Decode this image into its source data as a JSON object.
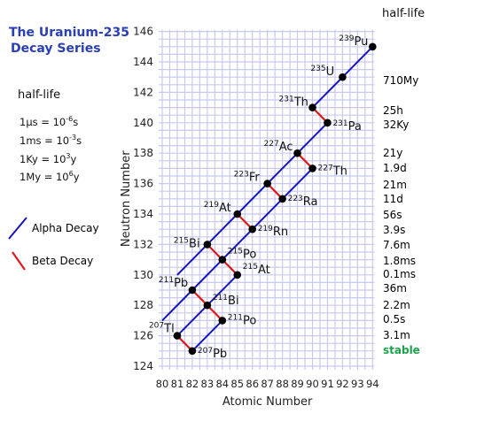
{
  "title": [
    "The Uranium-235",
    "Decay Series"
  ],
  "units_box": {
    "heading": "half-life",
    "lines": [
      {
        "base": "1μs = 10",
        "sup": "-6",
        "tail": "s"
      },
      {
        "base": "1ms = 10",
        "sup": "-3",
        "tail": "s"
      },
      {
        "base": "1Ky = 10",
        "sup": "3",
        "tail": "y"
      },
      {
        "base": "1My = 10",
        "sup": "6",
        "tail": "y"
      }
    ]
  },
  "legend": [
    {
      "label": "Alpha Decay",
      "color": "#2222cc"
    },
    {
      "label": "Beta Decay",
      "color": "#e02020"
    }
  ],
  "half_life_header": "half-life",
  "half_lives": [
    "710My",
    "25h",
    "32Ky",
    "21y",
    "1.9d",
    "21m",
    "11d",
    "56s",
    "3.9s",
    "7.6m",
    "1.8ms",
    "0.1ms",
    "36m",
    "2.2m",
    "0.5s",
    "3.1m",
    "stable"
  ],
  "chart_data": {
    "type": "scatter",
    "xlabel": "Atomic Number",
    "ylabel": "Neutron Number",
    "xlim": [
      80,
      94
    ],
    "ylim": [
      124,
      146
    ],
    "xticks": [
      80,
      81,
      82,
      83,
      84,
      85,
      86,
      87,
      88,
      89,
      90,
      91,
      92,
      93,
      94
    ],
    "yticks": [
      124,
      126,
      128,
      130,
      132,
      134,
      136,
      138,
      140,
      142,
      144,
      146
    ],
    "grid": true,
    "nuclides": [
      {
        "mass": "239",
        "symbol": "Pu",
        "z": 94,
        "n": 145
      },
      {
        "mass": "235",
        "symbol": "U",
        "z": 92,
        "n": 143
      },
      {
        "mass": "231",
        "symbol": "Th",
        "z": 90,
        "n": 141
      },
      {
        "mass": "231",
        "symbol": "Pa",
        "z": 91,
        "n": 140
      },
      {
        "mass": "227",
        "symbol": "Ac",
        "z": 89,
        "n": 138
      },
      {
        "mass": "227",
        "symbol": "Th",
        "z": 90,
        "n": 137
      },
      {
        "mass": "223",
        "symbol": "Fr",
        "z": 87,
        "n": 136
      },
      {
        "mass": "223",
        "symbol": "Ra",
        "z": 88,
        "n": 135
      },
      {
        "mass": "219",
        "symbol": "At",
        "z": 85,
        "n": 134
      },
      {
        "mass": "219",
        "symbol": "Rn",
        "z": 86,
        "n": 133
      },
      {
        "mass": "215",
        "symbol": "Bi",
        "z": 83,
        "n": 132
      },
      {
        "mass": "215",
        "symbol": "Po",
        "z": 84,
        "n": 131
      },
      {
        "mass": "211",
        "symbol": "Pb",
        "z": 82,
        "n": 129
      },
      {
        "mass": "215",
        "symbol": "At",
        "z": 85,
        "n": 130
      },
      {
        "mass": "211",
        "symbol": "Bi",
        "z": 83,
        "n": 128
      },
      {
        "mass": "211",
        "symbol": "Po",
        "z": 84,
        "n": 127
      },
      {
        "mass": "207",
        "symbol": "Tl",
        "z": 81,
        "n": 126
      },
      {
        "mass": "207",
        "symbol": "Pb",
        "z": 82,
        "n": 125
      }
    ],
    "alpha_decays": [
      [
        [
          94,
          145
        ],
        [
          92,
          143
        ],
        [
          90,
          141
        ]
      ],
      [
        [
          91,
          140
        ],
        [
          89,
          138
        ],
        [
          87,
          136
        ],
        [
          85,
          134
        ],
        [
          83,
          132
        ],
        [
          81,
          130
        ]
      ],
      [
        [
          90,
          137
        ],
        [
          88,
          135
        ],
        [
          86,
          133
        ],
        [
          84,
          131
        ],
        [
          82,
          129
        ],
        [
          80,
          127
        ]
      ],
      [
        [
          85,
          130
        ],
        [
          83,
          128
        ],
        [
          81,
          126
        ]
      ],
      [
        [
          84,
          127
        ],
        [
          82,
          125
        ]
      ]
    ],
    "beta_decays": [
      [
        [
          90,
          141
        ],
        [
          91,
          140
        ]
      ],
      [
        [
          89,
          138
        ],
        [
          90,
          137
        ]
      ],
      [
        [
          87,
          136
        ],
        [
          88,
          135
        ]
      ],
      [
        [
          85,
          134
        ],
        [
          86,
          133
        ]
      ],
      [
        [
          83,
          132
        ],
        [
          84,
          131
        ]
      ],
      [
        [
          84,
          131
        ],
        [
          85,
          130
        ]
      ],
      [
        [
          82,
          129
        ],
        [
          83,
          128
        ]
      ],
      [
        [
          83,
          128
        ],
        [
          84,
          127
        ]
      ],
      [
        [
          81,
          126
        ],
        [
          82,
          125
        ]
      ]
    ]
  }
}
